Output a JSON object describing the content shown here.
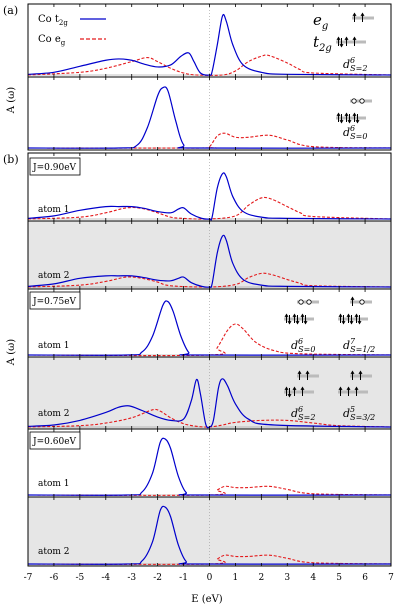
{
  "figure": {
    "panel_a_label": "(a)",
    "panel_b_label": "(b)",
    "ylabel": "A (ω)",
    "xlabel": "E (eV)",
    "legend": {
      "t2g_prefix": "Co t",
      "t2g_sub": "2g",
      "eg_prefix": "Co e",
      "eg_sub": "g"
    },
    "orbital_labels": {
      "eg_base": "e",
      "eg_sub": "g",
      "t2g_base": "t",
      "t2g_sub": "2g"
    },
    "configs": [
      {
        "base": "d",
        "sup": "6",
        "sub": "S=2"
      },
      {
        "base": "d",
        "sup": "6",
        "sub": "S=0"
      },
      {
        "base": "d",
        "sup": "6",
        "sub": "S=0"
      },
      {
        "base": "d",
        "sup": "7",
        "sub": "S=1/2"
      },
      {
        "base": "d",
        "sup": "6",
        "sub": "S=2"
      },
      {
        "base": "d",
        "sup": "5",
        "sub": "S=3/2"
      }
    ],
    "j_labels": [
      "J=0.90eV",
      "J=0.75eV",
      "J=0.60eV"
    ],
    "atom_labels": [
      "atom 1",
      "atom 2",
      "atom 1",
      "atom 2",
      "atom 1",
      "atom 2"
    ]
  },
  "chart_data": {
    "type": "line",
    "x_range": [
      -7,
      7
    ],
    "x_ticks": [
      "-7",
      "-6",
      "-5",
      "-4",
      "-3",
      "-2",
      "-1",
      "0",
      "1",
      "2",
      "3",
      "4",
      "5",
      "6",
      "7"
    ],
    "series_names": [
      "Co t2g",
      "Co eg"
    ],
    "colors": {
      "t2g": "#0000cc",
      "eg": "#e41a1c"
    },
    "panels": [
      {
        "id": "a_top",
        "shaded": false,
        "t2g": [
          [
            -7,
            0.01
          ],
          [
            -6,
            0.04
          ],
          [
            -5,
            0.13
          ],
          [
            -4,
            0.22
          ],
          [
            -3.5,
            0.24
          ],
          [
            -3,
            0.22
          ],
          [
            -2.5,
            0.16
          ],
          [
            -2,
            0.12
          ],
          [
            -1.5,
            0.15
          ],
          [
            -1.1,
            0.28
          ],
          [
            -0.8,
            0.33
          ],
          [
            -0.6,
            0.2
          ],
          [
            -0.35,
            0.03
          ],
          [
            0,
            0.0
          ],
          [
            0.1,
            0.05
          ],
          [
            0.3,
            0.45
          ],
          [
            0.5,
            0.88
          ],
          [
            0.65,
            0.8
          ],
          [
            0.9,
            0.45
          ],
          [
            1.3,
            0.15
          ],
          [
            2,
            0.04
          ],
          [
            3,
            0.01
          ],
          [
            7,
            0.0
          ]
        ],
        "eg": [
          [
            -7,
            0.0
          ],
          [
            -5,
            0.04
          ],
          [
            -4,
            0.1
          ],
          [
            -3,
            0.2
          ],
          [
            -2.4,
            0.26
          ],
          [
            -2,
            0.2
          ],
          [
            -1.5,
            0.1
          ],
          [
            -1,
            0.03
          ],
          [
            -0.5,
            0.0
          ],
          [
            0.5,
            0.0
          ],
          [
            1,
            0.06
          ],
          [
            1.5,
            0.2
          ],
          [
            2,
            0.28
          ],
          [
            2.3,
            0.29
          ],
          [
            3,
            0.18
          ],
          [
            3.5,
            0.08
          ],
          [
            4,
            0.03
          ],
          [
            7,
            0.0
          ]
        ]
      },
      {
        "id": "a_bottom",
        "shaded": false,
        "t2g": [
          [
            -7,
            0.0
          ],
          [
            -3.5,
            0.0
          ],
          [
            -2.8,
            0.04
          ],
          [
            -2.4,
            0.3
          ],
          [
            -2,
            0.78
          ],
          [
            -1.8,
            0.9
          ],
          [
            -1.6,
            0.85
          ],
          [
            -1.3,
            0.4
          ],
          [
            -1,
            0.05
          ],
          [
            -0.5,
            0.0
          ],
          [
            7,
            0.0
          ]
        ],
        "eg": [
          [
            -7,
            0.0
          ],
          [
            -0.3,
            0.0
          ],
          [
            0,
            0.02
          ],
          [
            0.3,
            0.18
          ],
          [
            0.6,
            0.22
          ],
          [
            1,
            0.16
          ],
          [
            1.5,
            0.16
          ],
          [
            2.3,
            0.19
          ],
          [
            3,
            0.12
          ],
          [
            4,
            0.02
          ],
          [
            7,
            0.0
          ]
        ]
      },
      {
        "id": "b_j090_atom1",
        "shaded": false,
        "t2g": [
          [
            -7,
            0.01
          ],
          [
            -6,
            0.05
          ],
          [
            -5,
            0.14
          ],
          [
            -4,
            0.2
          ],
          [
            -3.5,
            0.2
          ],
          [
            -3,
            0.2
          ],
          [
            -2.5,
            0.17
          ],
          [
            -2,
            0.12
          ],
          [
            -1.5,
            0.1
          ],
          [
            -1.2,
            0.16
          ],
          [
            -1,
            0.18
          ],
          [
            -0.7,
            0.08
          ],
          [
            -0.3,
            0.01
          ],
          [
            0,
            0.0
          ],
          [
            0.1,
            0.03
          ],
          [
            0.3,
            0.5
          ],
          [
            0.5,
            0.73
          ],
          [
            0.65,
            0.68
          ],
          [
            0.9,
            0.36
          ],
          [
            1.3,
            0.12
          ],
          [
            2,
            0.03
          ],
          [
            3,
            0.01
          ],
          [
            7,
            0.0
          ]
        ],
        "eg": [
          [
            -7,
            0.0
          ],
          [
            -5,
            0.03
          ],
          [
            -4,
            0.1
          ],
          [
            -3.2,
            0.18
          ],
          [
            -2.6,
            0.17
          ],
          [
            -2,
            0.1
          ],
          [
            -1.5,
            0.03
          ],
          [
            -1,
            0.01
          ],
          [
            0,
            0.0
          ],
          [
            1,
            0.05
          ],
          [
            1.5,
            0.22
          ],
          [
            2,
            0.34
          ],
          [
            2.4,
            0.32
          ],
          [
            3,
            0.2
          ],
          [
            3.5,
            0.1
          ],
          [
            4,
            0.04
          ],
          [
            7,
            0.0
          ]
        ]
      },
      {
        "id": "b_j090_atom2",
        "shaded": true,
        "t2g": [
          [
            -7,
            0.01
          ],
          [
            -6,
            0.05
          ],
          [
            -5,
            0.14
          ],
          [
            -4,
            0.18
          ],
          [
            -3.5,
            0.18
          ],
          [
            -3,
            0.18
          ],
          [
            -2.5,
            0.15
          ],
          [
            -2,
            0.11
          ],
          [
            -1.5,
            0.1
          ],
          [
            -1.2,
            0.14
          ],
          [
            -1,
            0.16
          ],
          [
            -0.7,
            0.07
          ],
          [
            -0.3,
            0.01
          ],
          [
            0,
            0.0
          ],
          [
            0.1,
            0.05
          ],
          [
            0.3,
            0.55
          ],
          [
            0.5,
            0.82
          ],
          [
            0.65,
            0.75
          ],
          [
            0.9,
            0.38
          ],
          [
            1.3,
            0.12
          ],
          [
            2,
            0.03
          ],
          [
            3,
            0.01
          ],
          [
            7,
            0.0
          ]
        ],
        "eg": [
          [
            -7,
            0.0
          ],
          [
            -5,
            0.03
          ],
          [
            -4,
            0.09
          ],
          [
            -3.2,
            0.16
          ],
          [
            -2.6,
            0.14
          ],
          [
            -2,
            0.08
          ],
          [
            -1.5,
            0.02
          ],
          [
            0,
            0.0
          ],
          [
            1,
            0.04
          ],
          [
            1.5,
            0.15
          ],
          [
            2,
            0.22
          ],
          [
            2.4,
            0.2
          ],
          [
            3,
            0.12
          ],
          [
            3.5,
            0.06
          ],
          [
            4,
            0.02
          ],
          [
            7,
            0.0
          ]
        ]
      },
      {
        "id": "b_j075_atom1",
        "shaded": false,
        "t2g": [
          [
            -7,
            0.0
          ],
          [
            -3.2,
            0.0
          ],
          [
            -2.6,
            0.05
          ],
          [
            -2.2,
            0.3
          ],
          [
            -1.8,
            0.8
          ],
          [
            -1.6,
            0.86
          ],
          [
            -1.4,
            0.7
          ],
          [
            -1.1,
            0.3
          ],
          [
            -0.8,
            0.04
          ],
          [
            -0.5,
            0.0
          ],
          [
            7,
            0.0
          ]
        ],
        "eg": [
          [
            -7,
            0.0
          ],
          [
            0,
            0.0
          ],
          [
            0.3,
            0.12
          ],
          [
            0.7,
            0.4
          ],
          [
            1,
            0.5
          ],
          [
            1.3,
            0.42
          ],
          [
            1.8,
            0.2
          ],
          [
            2.5,
            0.07
          ],
          [
            3.5,
            0.02
          ],
          [
            7,
            0.0
          ]
        ]
      },
      {
        "id": "b_j075_atom2",
        "shaded": true,
        "t2g": [
          [
            -7,
            0.01
          ],
          [
            -6,
            0.03
          ],
          [
            -5,
            0.1
          ],
          [
            -4,
            0.22
          ],
          [
            -3.5,
            0.3
          ],
          [
            -3.1,
            0.32
          ],
          [
            -2.6,
            0.25
          ],
          [
            -2,
            0.15
          ],
          [
            -1.5,
            0.1
          ],
          [
            -1,
            0.12
          ],
          [
            -0.7,
            0.4
          ],
          [
            -0.5,
            0.72
          ],
          [
            -0.35,
            0.5
          ],
          [
            -0.15,
            0.05
          ],
          [
            0,
            0.0
          ],
          [
            0.15,
            0.1
          ],
          [
            0.35,
            0.6
          ],
          [
            0.5,
            0.73
          ],
          [
            0.7,
            0.62
          ],
          [
            1,
            0.35
          ],
          [
            1.5,
            0.12
          ],
          [
            2.5,
            0.03
          ],
          [
            7,
            0.0
          ]
        ],
        "eg": [
          [
            -7,
            0.0
          ],
          [
            -5,
            0.02
          ],
          [
            -4,
            0.06
          ],
          [
            -3,
            0.14
          ],
          [
            -2.2,
            0.26
          ],
          [
            -1.9,
            0.24
          ],
          [
            -1.5,
            0.14
          ],
          [
            -1,
            0.05
          ],
          [
            -0.5,
            0.01
          ],
          [
            0,
            0.0
          ],
          [
            0.5,
            0.03
          ],
          [
            1,
            0.07
          ],
          [
            2,
            0.1
          ],
          [
            3,
            0.1
          ],
          [
            4,
            0.06
          ],
          [
            5,
            0.02
          ],
          [
            7,
            0.0
          ]
        ]
      },
      {
        "id": "b_j060_atom1",
        "shaded": false,
        "t2g": [
          [
            -7,
            0.0
          ],
          [
            -3.2,
            0.0
          ],
          [
            -2.6,
            0.05
          ],
          [
            -2.2,
            0.35
          ],
          [
            -1.9,
            0.85
          ],
          [
            -1.7,
            0.9
          ],
          [
            -1.5,
            0.75
          ],
          [
            -1.2,
            0.3
          ],
          [
            -0.9,
            0.04
          ],
          [
            -0.5,
            0.0
          ],
          [
            7,
            0.0
          ]
        ],
        "eg": [
          [
            -7,
            0.0
          ],
          [
            0,
            0.0
          ],
          [
            0.3,
            0.08
          ],
          [
            0.6,
            0.14
          ],
          [
            1,
            0.12
          ],
          [
            1.5,
            0.12
          ],
          [
            2.3,
            0.14
          ],
          [
            3,
            0.09
          ],
          [
            4,
            0.02
          ],
          [
            7,
            0.0
          ]
        ]
      },
      {
        "id": "b_j060_atom2",
        "shaded": true,
        "t2g": [
          [
            -7,
            0.0
          ],
          [
            -3.2,
            0.0
          ],
          [
            -2.6,
            0.05
          ],
          [
            -2.2,
            0.35
          ],
          [
            -1.9,
            0.85
          ],
          [
            -1.7,
            0.9
          ],
          [
            -1.5,
            0.75
          ],
          [
            -1.2,
            0.3
          ],
          [
            -0.9,
            0.04
          ],
          [
            -0.5,
            0.0
          ],
          [
            7,
            0.0
          ]
        ],
        "eg": [
          [
            -7,
            0.0
          ],
          [
            0,
            0.0
          ],
          [
            0.3,
            0.08
          ],
          [
            0.6,
            0.14
          ],
          [
            1,
            0.12
          ],
          [
            1.5,
            0.12
          ],
          [
            2.3,
            0.14
          ],
          [
            3,
            0.09
          ],
          [
            4,
            0.02
          ],
          [
            7,
            0.0
          ]
        ]
      }
    ]
  }
}
